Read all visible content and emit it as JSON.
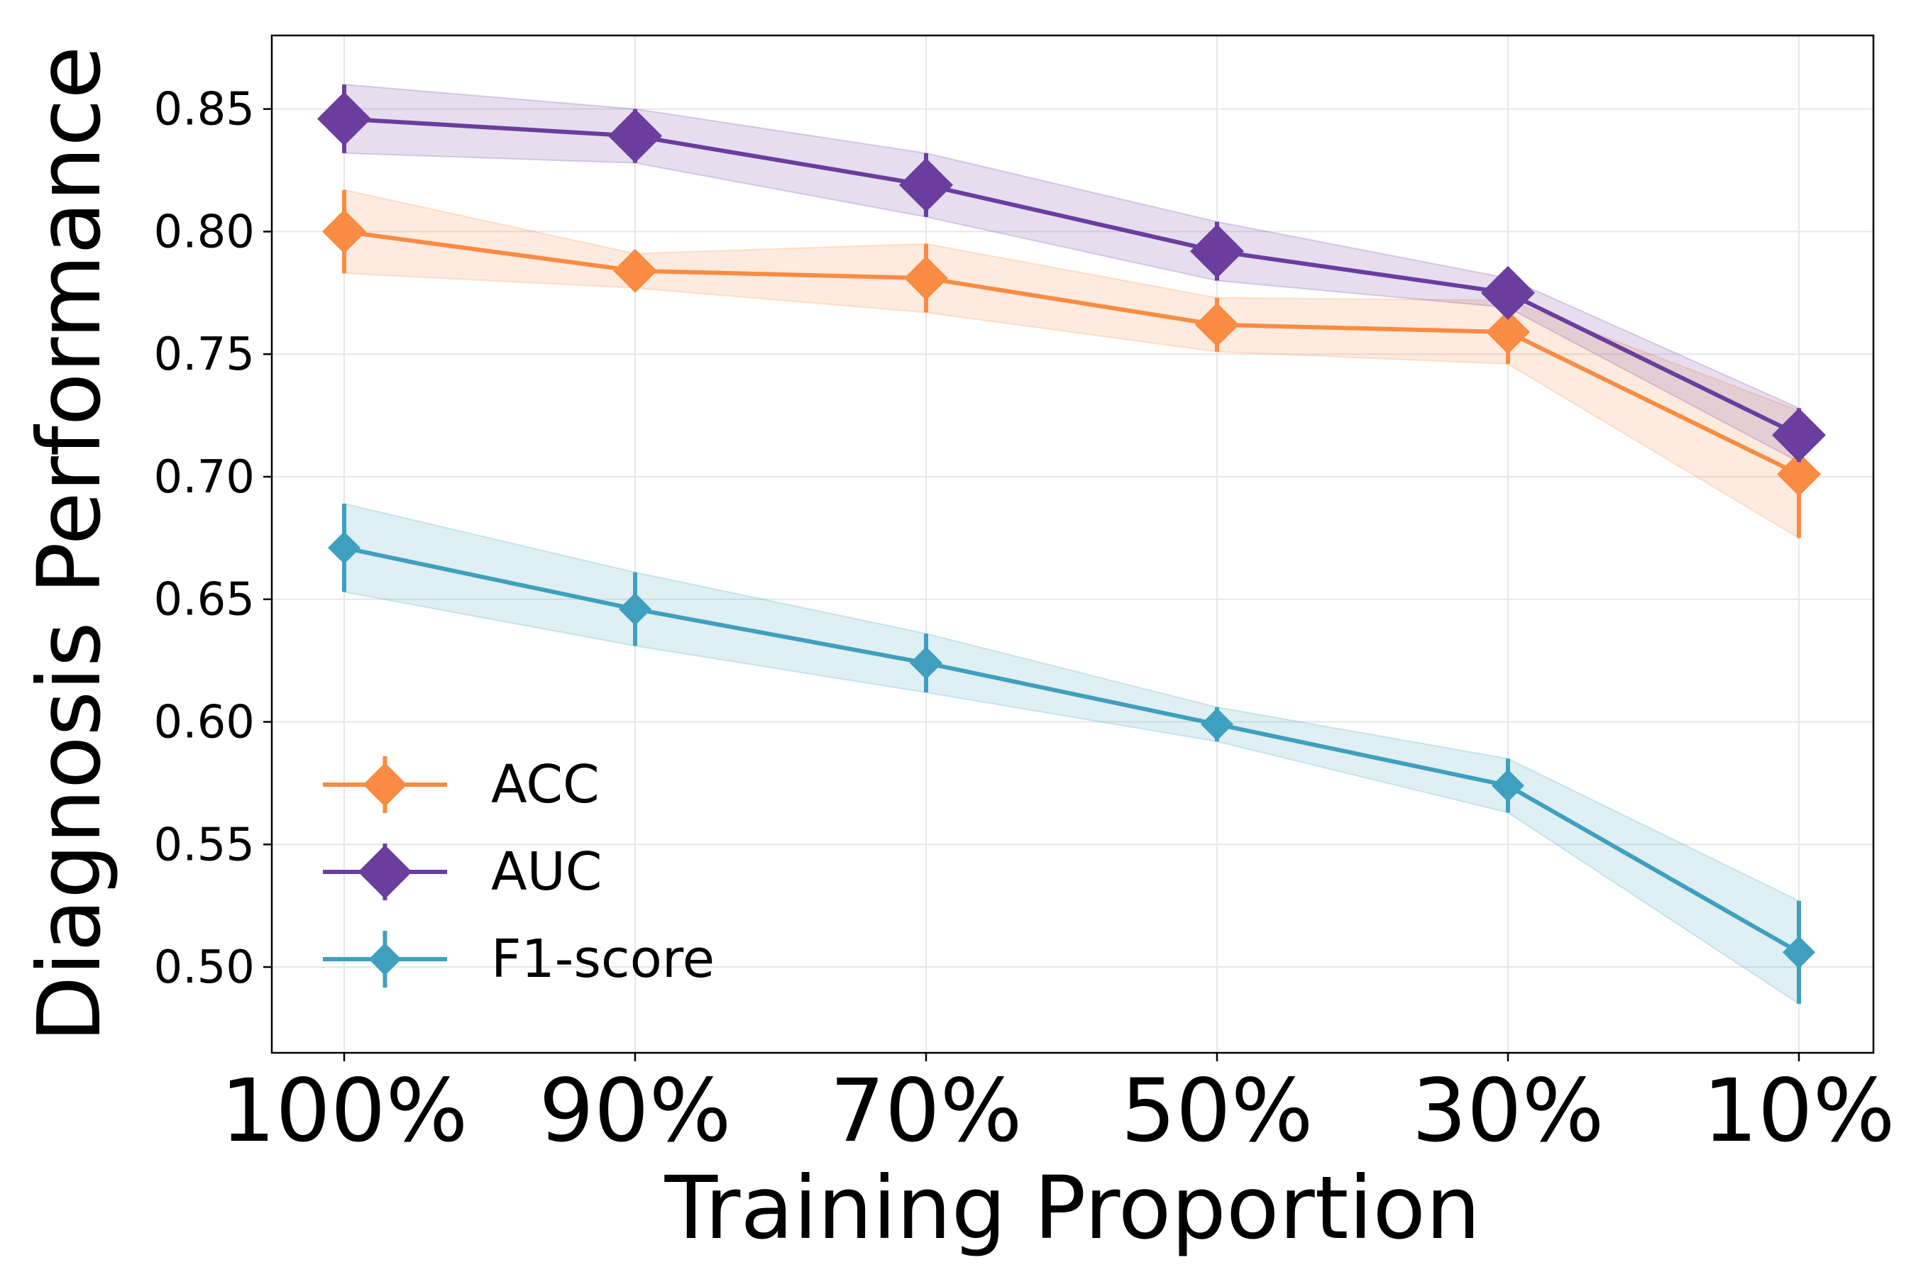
{
  "chart_data": {
    "type": "line",
    "title": "",
    "xlabel": "Training Proportion",
    "ylabel": "Diagnosis Performance",
    "categories": [
      "100%",
      "90%",
      "70%",
      "50%",
      "30%",
      "10%"
    ],
    "ylim": [
      0.465,
      0.88
    ],
    "yticks": [
      0.5,
      0.55,
      0.6,
      0.65,
      0.7,
      0.75,
      0.8,
      0.85
    ],
    "ytick_labels": [
      "0.50",
      "0.55",
      "0.60",
      "0.65",
      "0.70",
      "0.75",
      "0.80",
      "0.85"
    ],
    "grid": true,
    "legend_position": "bottom-left",
    "series": [
      {
        "name": "ACC",
        "color": "#f98b42",
        "values": [
          0.8,
          0.784,
          0.781,
          0.762,
          0.759,
          0.701
        ],
        "err": [
          0.017,
          0.007,
          0.014,
          0.011,
          0.013,
          0.026
        ]
      },
      {
        "name": "AUC",
        "color": "#6a3d9f",
        "values": [
          0.846,
          0.839,
          0.819,
          0.792,
          0.775,
          0.717
        ],
        "err": [
          0.014,
          0.011,
          0.013,
          0.012,
          0.006,
          0.011
        ]
      },
      {
        "name": "F1-score",
        "color": "#3f9fbf",
        "values": [
          0.671,
          0.646,
          0.624,
          0.599,
          0.574,
          0.506
        ],
        "err": [
          0.018,
          0.015,
          0.012,
          0.007,
          0.011,
          0.021
        ]
      }
    ]
  }
}
